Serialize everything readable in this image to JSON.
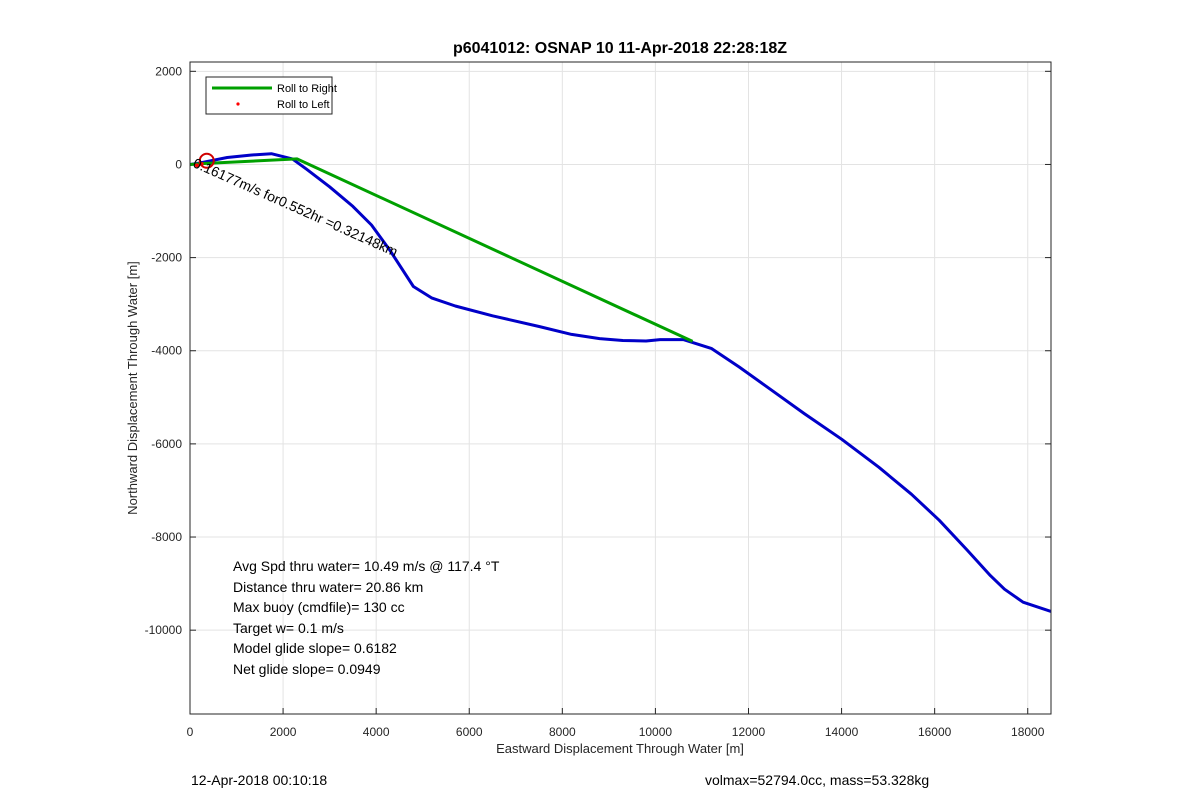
{
  "chart_data": {
    "type": "line",
    "title": "p6041012: OSNAP 10 11-Apr-2018 22:28:18Z",
    "xlabel": "Eastward Displacement Through Water [m]",
    "ylabel": "Northward Displacement Through Water [m]",
    "xlim": [
      0,
      18500
    ],
    "ylim": [
      -11800,
      2200
    ],
    "xticks": [
      0,
      2000,
      4000,
      6000,
      8000,
      10000,
      12000,
      14000,
      16000,
      18000
    ],
    "yticks": [
      2000,
      0,
      -2000,
      -4000,
      -6000,
      -8000,
      -10000
    ],
    "grid": true,
    "legend": {
      "placement": "top-left",
      "entries": [
        "Roll to Right",
        "Roll to Left"
      ]
    },
    "series": [
      {
        "name": "Roll to Right",
        "color": "#00a000",
        "style": "line",
        "points": [
          [
            0,
            0
          ],
          [
            300,
            20
          ],
          [
            2300,
            120
          ],
          [
            10800,
            -3800
          ]
        ]
      },
      {
        "name": "Roll to Left",
        "color": "#ff0000",
        "style": "dots",
        "points": [
          [
            150,
            -20
          ],
          [
            250,
            10
          ]
        ]
      },
      {
        "name": "",
        "color": "#0000c8",
        "style": "line",
        "points": [
          [
            0,
            0
          ],
          [
            200,
            30
          ],
          [
            400,
            70
          ],
          [
            800,
            150
          ],
          [
            1300,
            200
          ],
          [
            1750,
            230
          ],
          [
            2200,
            120
          ],
          [
            2500,
            -100
          ],
          [
            3000,
            -480
          ],
          [
            3500,
            -900
          ],
          [
            3900,
            -1300
          ],
          [
            4300,
            -1850
          ],
          [
            4800,
            -2620
          ],
          [
            5200,
            -2870
          ],
          [
            5700,
            -3040
          ],
          [
            6500,
            -3250
          ],
          [
            7500,
            -3480
          ],
          [
            8200,
            -3650
          ],
          [
            8800,
            -3740
          ],
          [
            9300,
            -3780
          ],
          [
            9800,
            -3790
          ],
          [
            10100,
            -3760
          ],
          [
            10600,
            -3760
          ],
          [
            11200,
            -3950
          ],
          [
            11800,
            -4350
          ],
          [
            12500,
            -4850
          ],
          [
            13200,
            -5350
          ],
          [
            14000,
            -5900
          ],
          [
            14800,
            -6500
          ],
          [
            15500,
            -7080
          ],
          [
            16100,
            -7640
          ],
          [
            16700,
            -8280
          ],
          [
            17200,
            -8830
          ],
          [
            17500,
            -9120
          ],
          [
            17900,
            -9400
          ],
          [
            18500,
            -9600
          ]
        ]
      }
    ],
    "markers": [
      {
        "type": "circle",
        "color": "#d00000",
        "x": 360,
        "y": 80
      }
    ],
    "annotations": [
      {
        "text": "0.16177m/s for0.552hr =0.32148km",
        "x": 0,
        "y": 0,
        "rotation_deg": 24
      }
    ],
    "stats": [
      "Avg Spd thru water= 10.49 m/s @ 117.4 °T",
      "Distance thru water= 20.86 km",
      "Max buoy (cmdfile)= 130 cc",
      "Target w= 0.1 m/s",
      "Model glide slope= 0.6182",
      "Net glide slope= 0.0949"
    ]
  },
  "footer": {
    "left": "12-Apr-2018 00:10:18",
    "right": "volmax=52794.0cc, mass=53.328kg"
  }
}
